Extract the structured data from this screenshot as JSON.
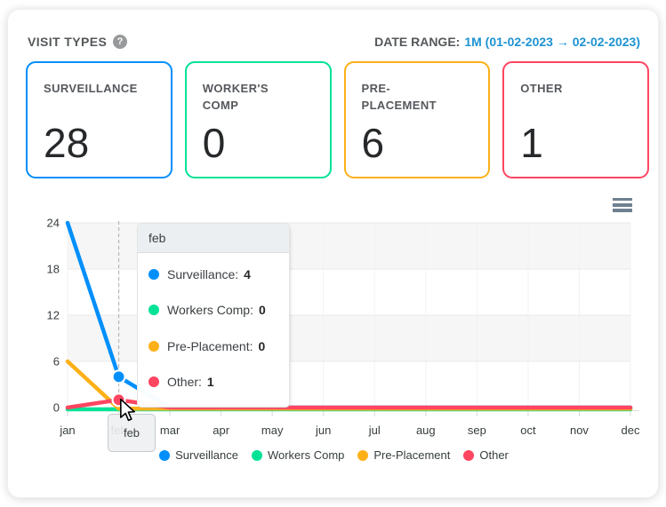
{
  "header": {
    "title": "VISIT TYPES",
    "help_icon": "?",
    "date_range_label": "DATE RANGE:",
    "date_range_value": "1M (01-02-2023 → 02-02-2023)",
    "date_range_color": "#1d93d2"
  },
  "cards": [
    {
      "label": "SURVEILLANCE",
      "value": "28",
      "color": "#008FFB"
    },
    {
      "label": "WORKER'S COMP",
      "value": "0",
      "color": "#00E396"
    },
    {
      "label": "PRE-PLACEMENT",
      "value": "6",
      "color": "#FEB019"
    },
    {
      "label": "OTHER",
      "value": "1",
      "color": "#FF4560"
    }
  ],
  "chart_data": {
    "type": "line",
    "x": [
      "jan",
      "feb",
      "mar",
      "apr",
      "may",
      "jun",
      "jul",
      "aug",
      "sep",
      "oct",
      "nov",
      "dec"
    ],
    "series": [
      {
        "name": "Surveillance",
        "color": "#008FFB",
        "values": [
          24,
          4,
          0,
          0,
          0,
          0,
          0,
          0,
          0,
          0,
          0,
          0
        ]
      },
      {
        "name": "Workers Comp",
        "color": "#00E396",
        "values": [
          0,
          0,
          0,
          0,
          0,
          0,
          0,
          0,
          0,
          0,
          0,
          0
        ]
      },
      {
        "name": "Pre-Placement",
        "color": "#FEB019",
        "values": [
          6,
          0,
          0,
          0,
          0,
          0,
          0,
          0,
          0,
          0,
          0,
          0
        ]
      },
      {
        "name": "Other",
        "color": "#FF4560",
        "values": [
          0,
          1,
          0,
          0,
          0,
          0,
          0,
          0,
          0,
          0,
          0,
          0
        ]
      }
    ],
    "ylim": [
      0,
      24
    ],
    "yticks": [
      0,
      6,
      12,
      18,
      24
    ],
    "grid": {
      "row_stripes": true,
      "stripe_color": "#f6f6f7",
      "line_color": "#e9e9e9"
    },
    "legend_position": "bottom",
    "hovered_month": "feb"
  },
  "tooltip": {
    "title": "feb",
    "rows": [
      {
        "label": "Surveillance:",
        "value": "4",
        "color": "#008FFB"
      },
      {
        "label": "Workers Comp:",
        "value": "0",
        "color": "#00E396"
      },
      {
        "label": "Pre-Placement:",
        "value": "0",
        "color": "#FEB019"
      },
      {
        "label": "Other:",
        "value": "1",
        "color": "#FF4560"
      }
    ]
  },
  "xaxis_tooltip": {
    "label": "feb"
  },
  "legend": [
    {
      "label": "Surveillance",
      "color": "#008FFB"
    },
    {
      "label": "Workers Comp",
      "color": "#00E396"
    },
    {
      "label": "Pre-Placement",
      "color": "#FEB019"
    },
    {
      "label": "Other",
      "color": "#FF4560"
    }
  ],
  "toolbar": {
    "menu_icon": "hamburger-menu"
  }
}
